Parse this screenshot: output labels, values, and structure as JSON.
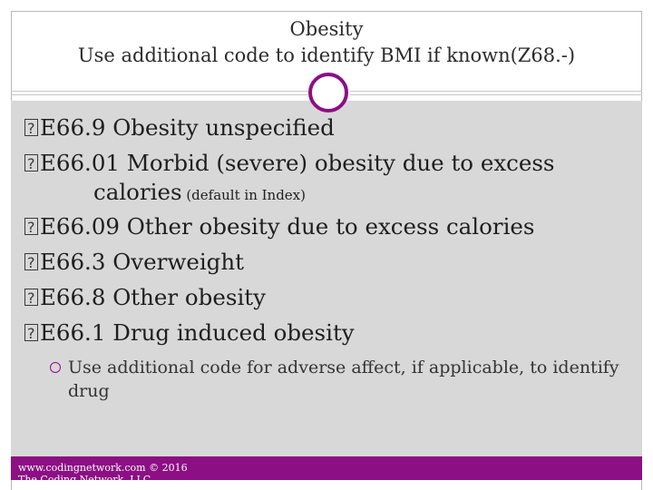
{
  "title": {
    "line1": "Obesity",
    "line2": "Use additional code to identify BMI if known(Z68.-)"
  },
  "bullets": [
    {
      "text": "E66.9 Obesity unspecified"
    },
    {
      "text": "E66.01 Morbid (severe) obesity due to excess",
      "continuation": "calories",
      "note": " (default in Index)"
    },
    {
      "text": "E66.09 Other obesity due to excess calories"
    },
    {
      "text": "E66.3 Overweight"
    },
    {
      "text": "E66.8 Other obesity"
    },
    {
      "text": "E66.1 Drug induced obesity"
    }
  ],
  "sub_bullet": "Use additional code for adverse affect, if applicable, to identify drug",
  "footer": {
    "line1": "www.codingnetwork.com © 2016",
    "line2": "The Coding Network, LLC"
  },
  "colors": {
    "accent": "#8c0f84",
    "content_bg": "#d8d8d8"
  }
}
